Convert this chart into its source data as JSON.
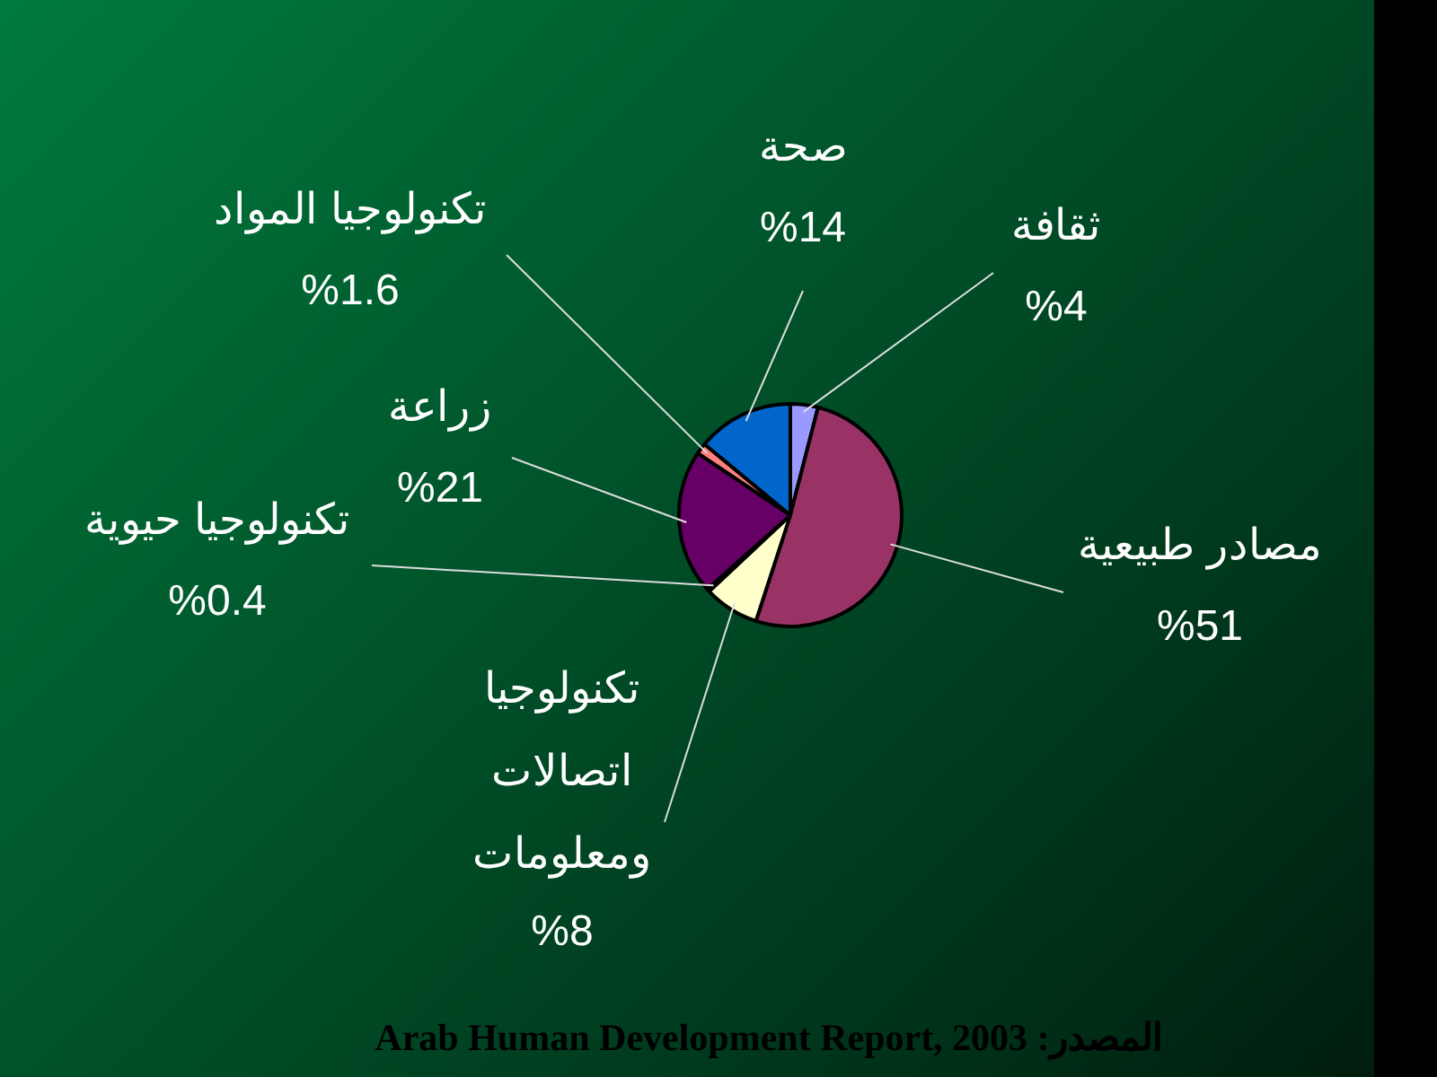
{
  "chart_data": {
    "type": "pie",
    "categories": [
      "ثقافة",
      "مصادر طبيعية",
      "تكنولوجيا اتصالات ومعلومات",
      "تكنولوجيا حيوية",
      "زراعة",
      "تكنولوجيا المواد",
      "صحة"
    ],
    "values": [
      4,
      51,
      8,
      0.4,
      21,
      1.6,
      14
    ],
    "value_labels": [
      "%4",
      "%51",
      "%8",
      "%0.4",
      "%21",
      "%1.6",
      "%14"
    ],
    "colors": [
      "#9999ff",
      "#993366",
      "#ffffcc",
      "#ccffff",
      "#660066",
      "#ff8080",
      "#0066cc"
    ],
    "legend": false,
    "annotations": [
      "المصدر: Arab Human Development Report, 2003"
    ]
  }
}
